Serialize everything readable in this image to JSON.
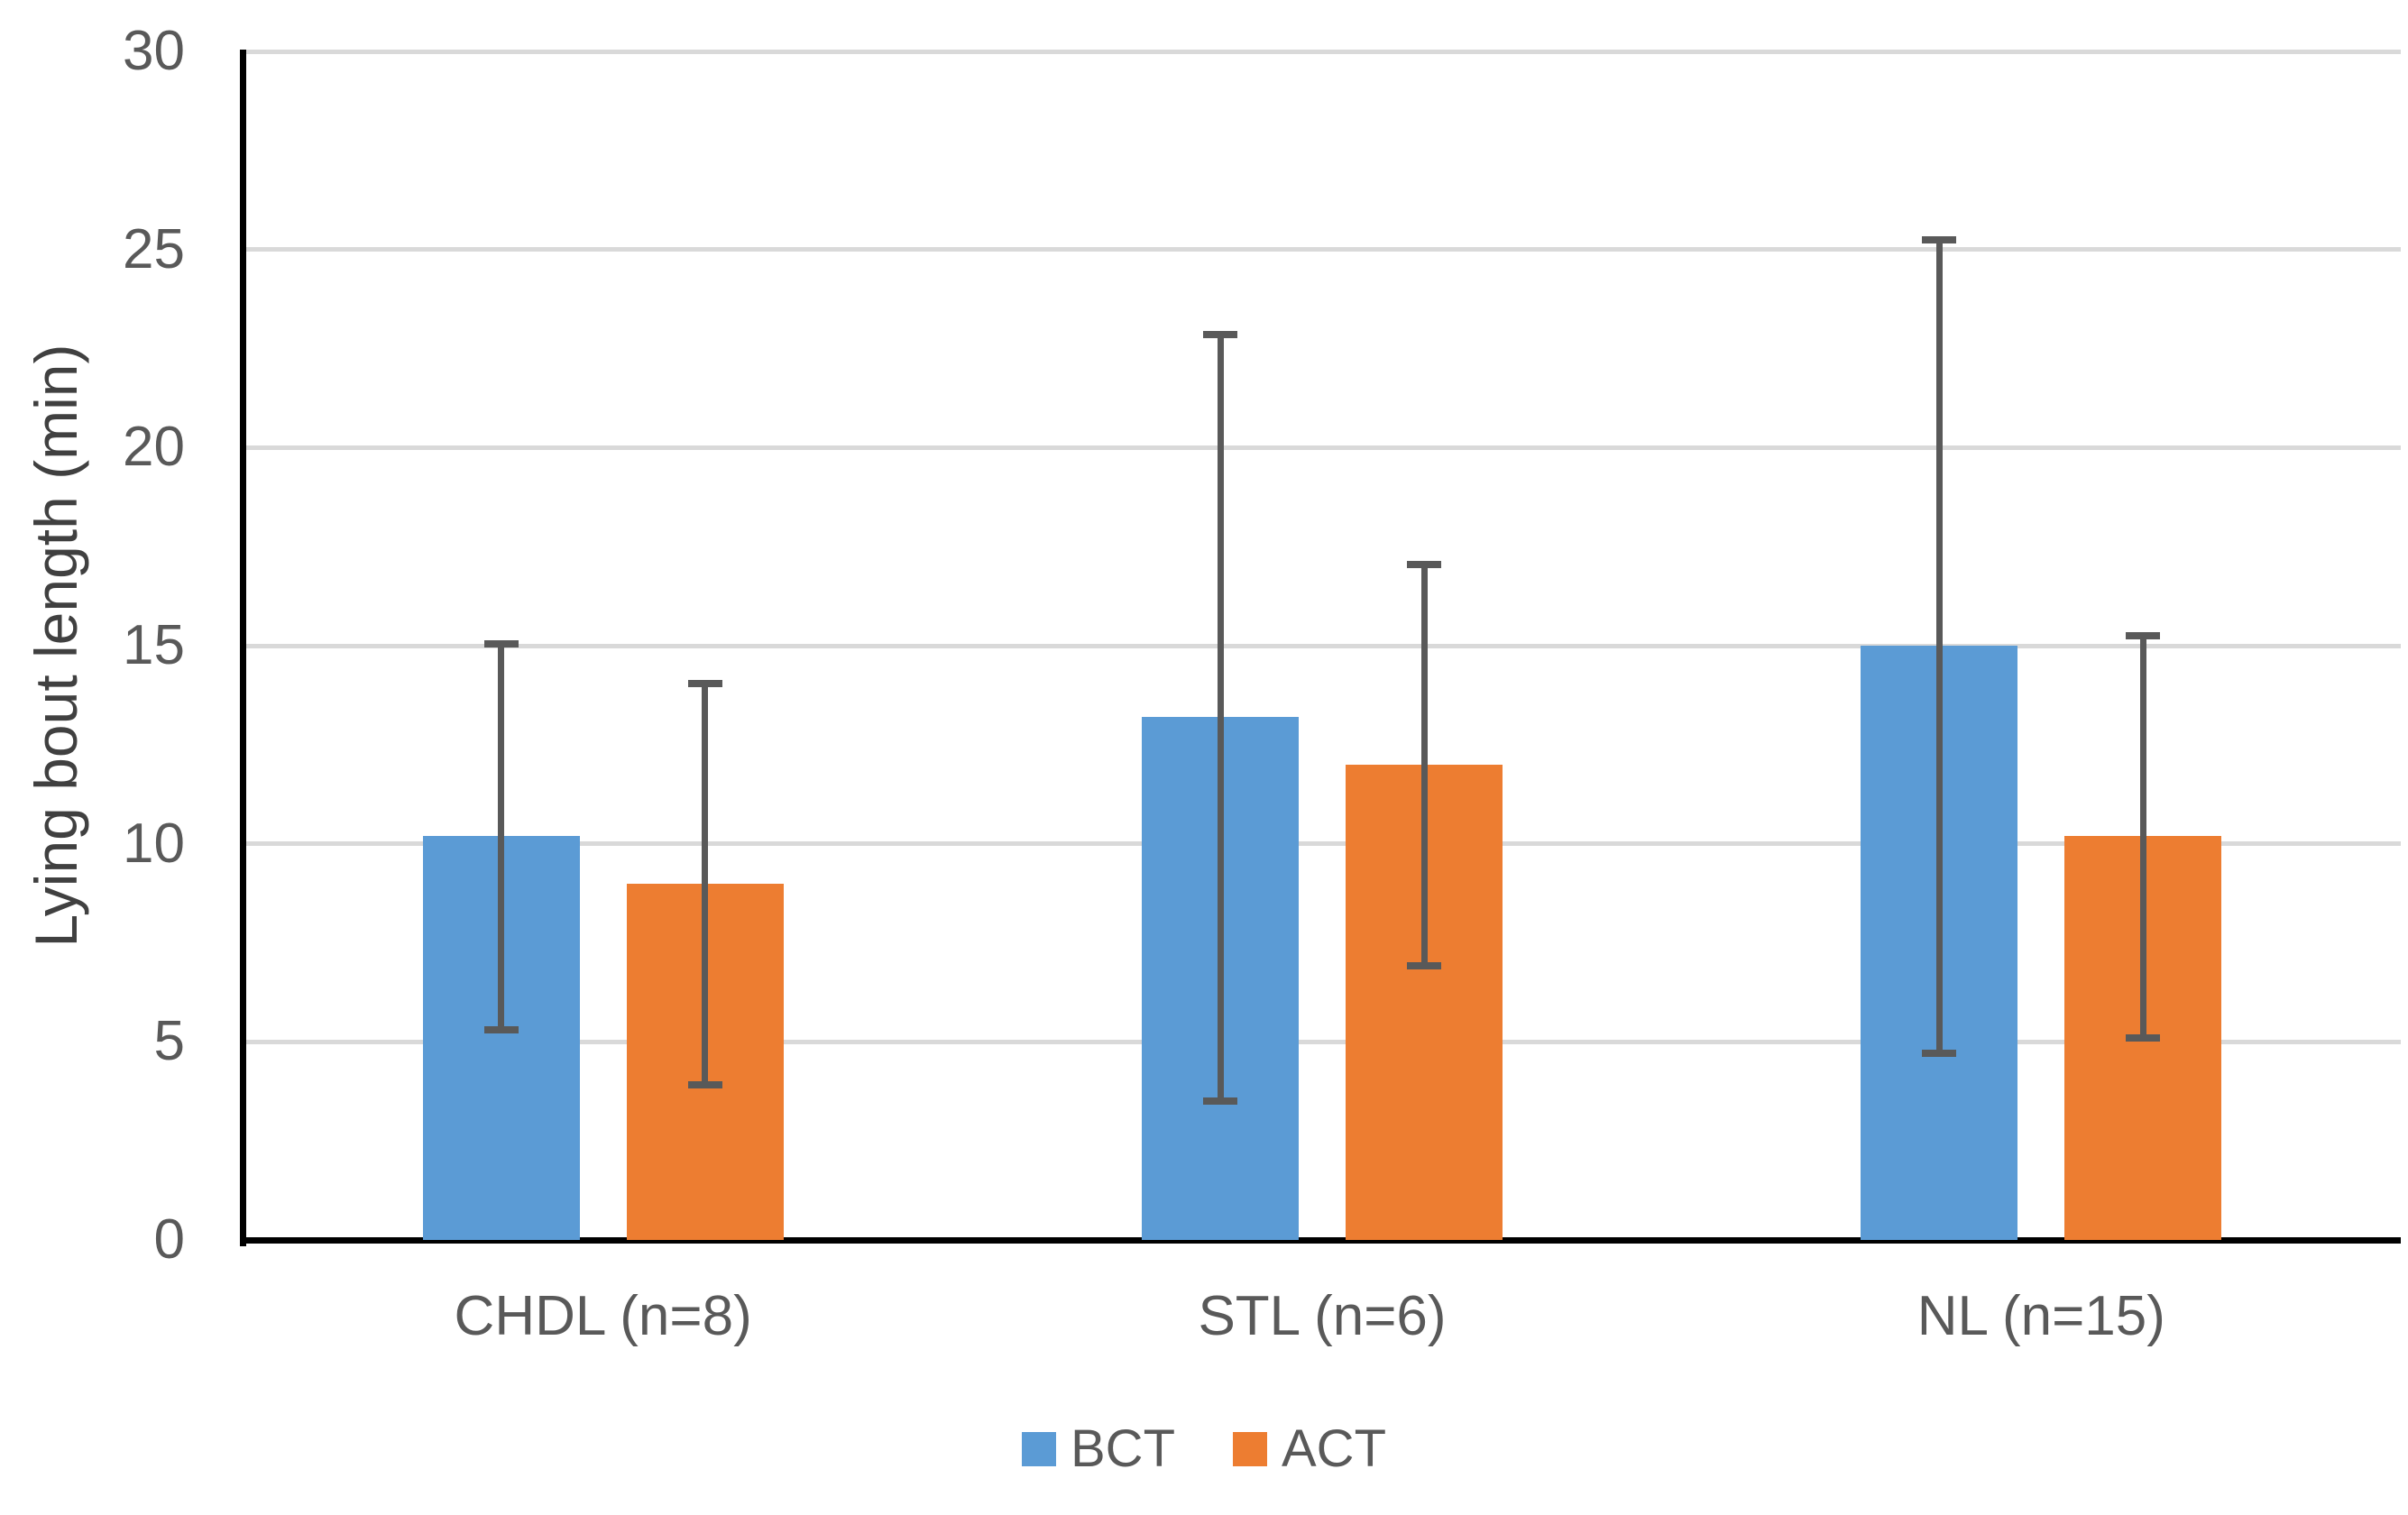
{
  "chart_data": {
    "type": "bar",
    "title": "",
    "categories": [
      "CHDL (n=8)",
      "STL (n=6)",
      "NL (n=15)"
    ],
    "series": [
      {
        "name": "BCT",
        "color": "#5B9BD5",
        "values": [
          10.2,
          13.2,
          15.0
        ],
        "error_low": [
          5.4,
          3.6,
          4.8
        ],
        "error_high": [
          15.0,
          22.8,
          25.2
        ]
      },
      {
        "name": "ACT",
        "color": "#ED7D31",
        "values": [
          9.0,
          12.0,
          10.2
        ],
        "error_low": [
          4.0,
          7.0,
          5.2
        ],
        "error_high": [
          14.0,
          17.0,
          15.2
        ]
      }
    ],
    "xlabel": "",
    "ylabel": "Lying bout length (min)",
    "ylim": [
      0,
      30
    ],
    "yticks": [
      0,
      5,
      10,
      15,
      20,
      25,
      30
    ],
    "grid": true,
    "legend_position": "bottom",
    "colors": {
      "gridline": "#D9D9D9",
      "axis": "#000000",
      "error_bar": "#595959",
      "tick_text": "#595959",
      "axis_title_text": "#404040"
    }
  }
}
